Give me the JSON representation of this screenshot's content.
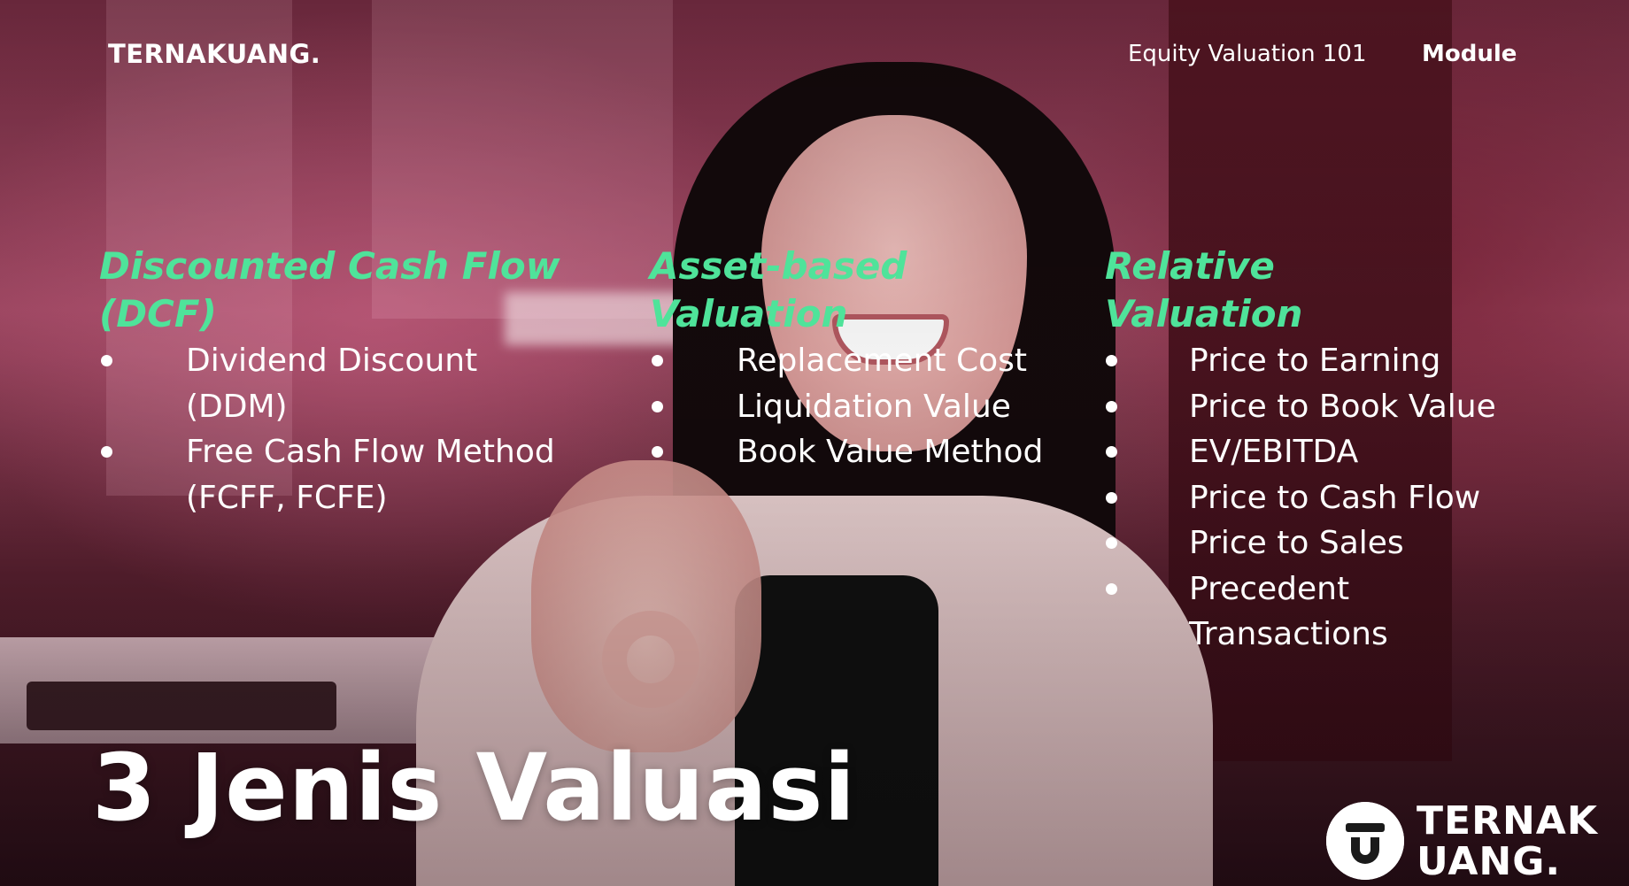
{
  "header": {
    "brand": "TERNAKUANG.",
    "course": "Equity Valuation 101",
    "module": "Module"
  },
  "columns": [
    {
      "title_line1": "Discounted Cash Flow",
      "title_line2": "(DCF)",
      "items": [
        {
          "line1": "Dividend Discount",
          "line2": "(DDM)"
        },
        {
          "line1": "Free Cash Flow Method",
          "line2": "(FCFF, FCFE)"
        }
      ]
    },
    {
      "title_line1": "Asset-based",
      "title_line2": "Valuation",
      "items": [
        {
          "line1": "Replacement Cost"
        },
        {
          "line1": "Liquidation Value"
        },
        {
          "line1": "Book Value Method"
        }
      ]
    },
    {
      "title_line1": "Relative",
      "title_line2": "Valuation",
      "items": [
        {
          "line1": "Price to Earning"
        },
        {
          "line1": "Price to Book Value"
        },
        {
          "line1": "EV/EBITDA"
        },
        {
          "line1": "Price to Cash Flow"
        },
        {
          "line1": "Price to Sales"
        },
        {
          "line1": "Precedent",
          "line2": "Transactions"
        }
      ]
    }
  ],
  "main_title": "3 Jenis Valuasi",
  "logo": {
    "icon": "ternak-uang-logo-icon",
    "line1": "TERNAK",
    "line2": "UANG."
  },
  "colors": {
    "accent_green": "#4fe39a",
    "text": "#ffffff"
  }
}
